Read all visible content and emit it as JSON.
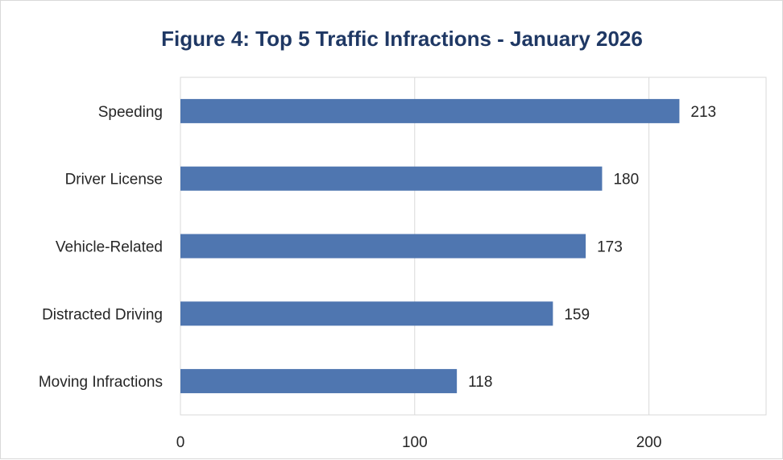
{
  "chart_data": {
    "type": "bar",
    "orientation": "horizontal",
    "title": "Figure 4: Top 5 Traffic Infractions - January 2026",
    "xlabel": "",
    "ylabel": "",
    "categories": [
      "Speeding",
      "Driver License",
      "Vehicle-Related",
      "Distracted Driving",
      "Moving Infractions"
    ],
    "values": [
      213,
      180,
      173,
      159,
      118
    ],
    "xlim": [
      0,
      250
    ],
    "xticks": [
      0,
      100,
      200
    ],
    "grid": "vertical",
    "legend": "none",
    "data_labels": true,
    "bar_color": "#4f76b0"
  }
}
